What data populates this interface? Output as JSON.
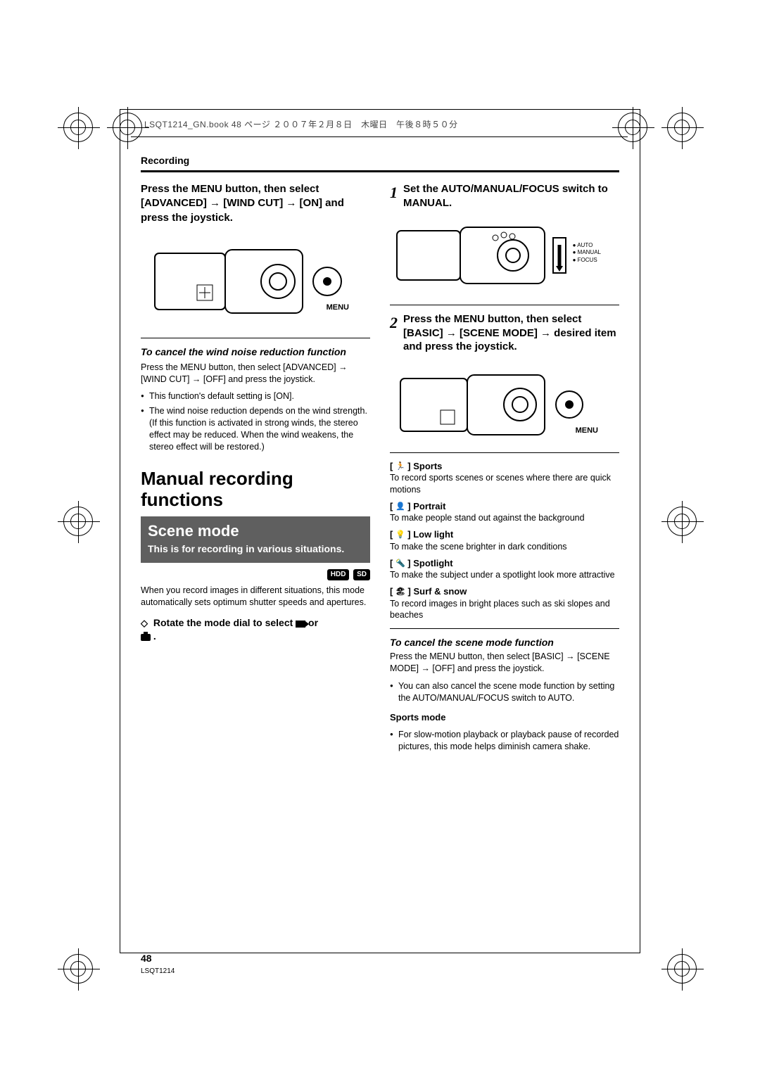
{
  "header_strip": "LSQT1214_GN.book  48 ページ  ２００７年２月８日　木曜日　午後８時５０分",
  "section_label": "Recording",
  "page_number": "48",
  "doc_id": "LSQT1214",
  "left": {
    "intro": "Press the MENU button, then select [ADVANCED] → [WIND CUT] → [ON] and press the joystick.",
    "menu_label": "MENU",
    "cancel_head": "To cancel the wind noise reduction function",
    "cancel_body": "Press the MENU button, then select [ADVANCED] → [WIND CUT] → [OFF] and press the joystick.",
    "bullets": [
      "This function's default setting is [ON].",
      "The wind noise reduction depends on the wind strength. (If this function is activated in strong winds, the stereo effect may be reduced. When the wind weakens, the stereo effect will be restored.)"
    ],
    "title": "Manual recording functions",
    "scene_title": "Scene mode",
    "scene_sub": "This is for recording in various situations.",
    "badges": [
      "HDD",
      "SD"
    ],
    "body2": "When you record images in different situations, this mode automatically sets optimum shutter speeds and apertures.",
    "rotate_pre": "Rotate the mode dial to select ",
    "rotate_post": " or "
  },
  "right": {
    "step1": "Set the AUTO/MANUAL/FOCUS switch to MANUAL.",
    "switch_labels": [
      "AUTO",
      "MANUAL",
      "FOCUS"
    ],
    "step2": "Press the MENU button, then select [BASIC] → [SCENE MODE] → desired item and press the joystick.",
    "menu_label": "MENU",
    "modes": [
      {
        "icon": "🏃",
        "name": "Sports",
        "desc": "To record sports scenes or scenes where there are quick motions"
      },
      {
        "icon": "👤",
        "name": "Portrait",
        "desc": "To make people stand out against the background"
      },
      {
        "icon": "💡",
        "name": "Low light",
        "desc": "To make the scene brighter in dark conditions"
      },
      {
        "icon": "🔦",
        "name": "Spotlight",
        "desc": "To make the subject under a spotlight look more attractive"
      },
      {
        "icon": "🏖",
        "name": "Surf & snow",
        "desc": "To record images in bright places such as ski slopes and beaches"
      }
    ],
    "cancel_head": "To cancel the scene mode function",
    "cancel_body": "Press the MENU button, then select [BASIC] → [SCENE MODE] → [OFF] and press the joystick.",
    "cancel_bullet": "You can also cancel the scene mode function by setting the AUTO/MANUAL/FOCUS switch to AUTO.",
    "sports_head": "Sports mode",
    "sports_bullet": "For slow-motion playback or playback pause of recorded pictures, this mode helps diminish camera shake."
  }
}
